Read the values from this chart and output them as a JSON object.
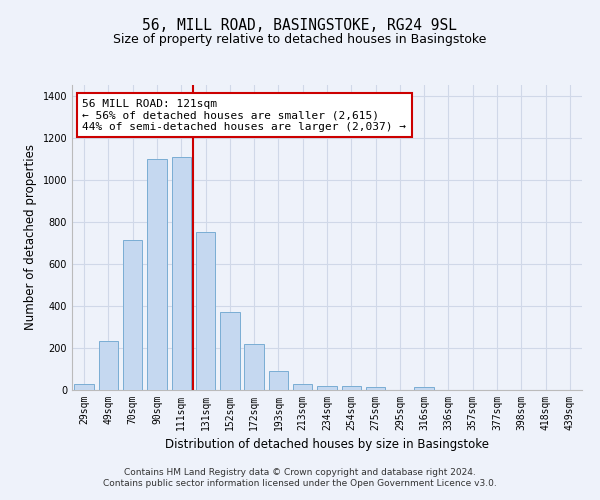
{
  "title": "56, MILL ROAD, BASINGSTOKE, RG24 9SL",
  "subtitle": "Size of property relative to detached houses in Basingstoke",
  "xlabel": "Distribution of detached houses by size in Basingstoke",
  "ylabel": "Number of detached properties",
  "categories": [
    "29sqm",
    "49sqm",
    "70sqm",
    "90sqm",
    "111sqm",
    "131sqm",
    "152sqm",
    "172sqm",
    "193sqm",
    "213sqm",
    "234sqm",
    "254sqm",
    "275sqm",
    "295sqm",
    "316sqm",
    "336sqm",
    "357sqm",
    "377sqm",
    "398sqm",
    "418sqm",
    "439sqm"
  ],
  "values": [
    30,
    235,
    715,
    1100,
    1110,
    750,
    370,
    220,
    90,
    30,
    20,
    20,
    15,
    0,
    15,
    0,
    0,
    0,
    0,
    0,
    0
  ],
  "bar_color": "#c5d8f0",
  "bar_edge_color": "#7aadd4",
  "grid_color": "#d0d8e8",
  "background_color": "#eef2fa",
  "vline_x": 4.5,
  "vline_color": "#cc0000",
  "annotation_text": "56 MILL ROAD: 121sqm\n← 56% of detached houses are smaller (2,615)\n44% of semi-detached houses are larger (2,037) →",
  "annotation_box_color": "#ffffff",
  "annotation_box_edge_color": "#cc0000",
  "footer": "Contains HM Land Registry data © Crown copyright and database right 2024.\nContains public sector information licensed under the Open Government Licence v3.0.",
  "ylim": [
    0,
    1450
  ],
  "title_fontsize": 10.5,
  "subtitle_fontsize": 9,
  "xlabel_fontsize": 8.5,
  "ylabel_fontsize": 8.5,
  "tick_fontsize": 7,
  "annotation_fontsize": 8,
  "footer_fontsize": 6.5
}
